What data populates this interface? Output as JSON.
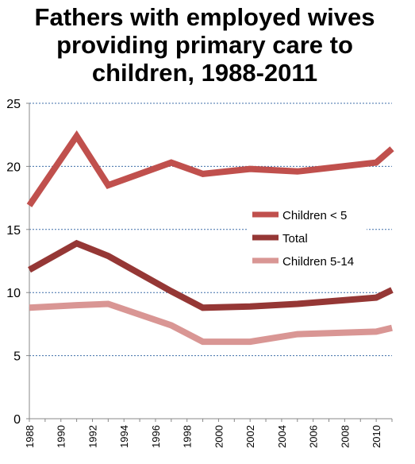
{
  "chart_data": {
    "type": "line",
    "title_lines": [
      "Fathers with employed wives",
      "providing primary care to",
      "children, 1988-2011"
    ],
    "xlabel": "",
    "ylabel": "",
    "xlim": [
      1988,
      2011
    ],
    "ylim": [
      0,
      25
    ],
    "x_ticks": [
      1988,
      1990,
      1992,
      1994,
      1996,
      1998,
      2000,
      2002,
      2004,
      2006,
      2008,
      2010
    ],
    "x_tick_labels": [
      "1988",
      "1990",
      "1992",
      "1994",
      "1996",
      "1998",
      "2000",
      "2002",
      "2004",
      "2006",
      "2008",
      "2010"
    ],
    "y_ticks": [
      0,
      5,
      10,
      15,
      20,
      25
    ],
    "y_tick_labels": [
      "0",
      "5",
      "10",
      "15",
      "20",
      "25"
    ],
    "grid": true,
    "legend_position": "right-middle",
    "series": [
      {
        "name": "Children < 5",
        "color": "#c0504d",
        "points": [
          {
            "x": 1988,
            "y": 16.9
          },
          {
            "x": 1991,
            "y": 22.4
          },
          {
            "x": 1993,
            "y": 18.5
          },
          {
            "x": 1997,
            "y": 20.3
          },
          {
            "x": 1999,
            "y": 19.4
          },
          {
            "x": 2002,
            "y": 19.8
          },
          {
            "x": 2005,
            "y": 19.6
          },
          {
            "x": 2010,
            "y": 20.3
          },
          {
            "x": 2011,
            "y": 21.4
          }
        ]
      },
      {
        "name": "Total",
        "color": "#953735",
        "points": [
          {
            "x": 1988,
            "y": 11.8
          },
          {
            "x": 1991,
            "y": 13.9
          },
          {
            "x": 1993,
            "y": 12.9
          },
          {
            "x": 1997,
            "y": 10.1
          },
          {
            "x": 1999,
            "y": 8.8
          },
          {
            "x": 2002,
            "y": 8.9
          },
          {
            "x": 2005,
            "y": 9.1
          },
          {
            "x": 2010,
            "y": 9.6
          },
          {
            "x": 2011,
            "y": 10.2
          }
        ]
      },
      {
        "name": "Children 5-14",
        "color": "#d99694",
        "points": [
          {
            "x": 1988,
            "y": 8.8
          },
          {
            "x": 1991,
            "y": 9.0
          },
          {
            "x": 1993,
            "y": 9.1
          },
          {
            "x": 1997,
            "y": 7.4
          },
          {
            "x": 1999,
            "y": 6.1
          },
          {
            "x": 2002,
            "y": 6.1
          },
          {
            "x": 2005,
            "y": 6.7
          },
          {
            "x": 2010,
            "y": 6.9
          },
          {
            "x": 2011,
            "y": 7.2
          }
        ]
      }
    ]
  }
}
